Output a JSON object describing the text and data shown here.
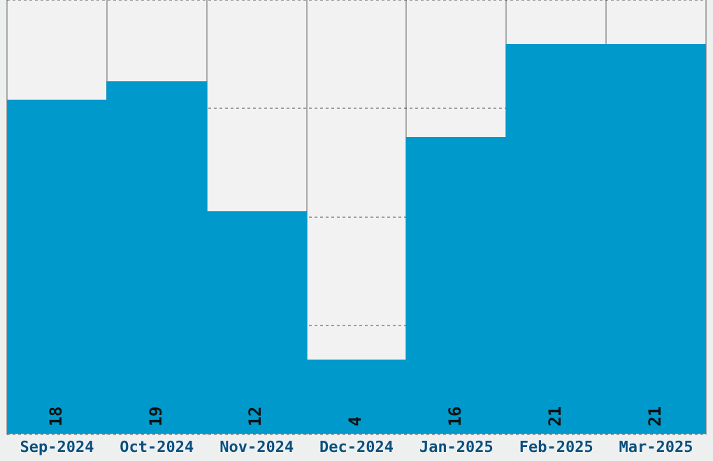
{
  "chart_data": {
    "type": "bar",
    "categories": [
      "Sep-2024",
      "Oct-2024",
      "Nov-2024",
      "Dec-2024",
      "Jan-2025",
      "Feb-2025",
      "Mar-2025"
    ],
    "values": [
      18,
      19,
      12,
      4,
      16,
      21,
      21
    ],
    "color": "#0099cc",
    "ylim": [
      0,
      23.4
    ],
    "yticks": [
      {
        "value": 0,
        "label": null
      },
      {
        "value": 5.85,
        "label": null
      },
      {
        "value": 11.7,
        "label": null
      },
      {
        "value": 17.55,
        "label": null
      },
      {
        "value": 23.4,
        "label": null
      }
    ],
    "tick_labels": "x",
    "grid": true,
    "data_labels": true
  }
}
